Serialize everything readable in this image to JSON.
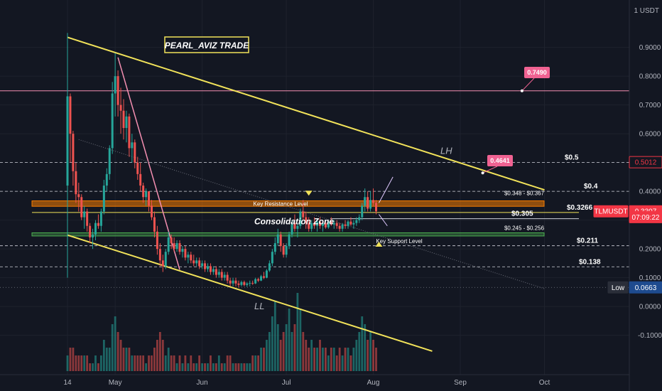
{
  "chart_data": {
    "type": "candlestick",
    "title": "PEARL_AVIZ TRADE",
    "symbol": "TLMUSDT",
    "currency": "USDT",
    "y_axis_unit_label": "1 USDT",
    "ylim": [
      -0.17,
      1.03
    ],
    "y_ticks": [
      {
        "value": 0.9,
        "label": "0.9000"
      },
      {
        "value": 0.8,
        "label": "0.8000"
      },
      {
        "value": 0.7,
        "label": "0.7000"
      },
      {
        "value": 0.6,
        "label": "0.6000"
      },
      {
        "value": 0.5,
        "label": "0.5000"
      },
      {
        "value": 0.4,
        "label": "0.4000"
      },
      {
        "value": 0.3,
        "label": "0.3000"
      },
      {
        "value": 0.2,
        "label": "0.2000"
      },
      {
        "value": 0.1,
        "label": "0.1000"
      },
      {
        "value": 0.0,
        "label": "0.0000"
      },
      {
        "value": -0.1,
        "label": "-0.1000"
      }
    ],
    "x_ticks": [
      {
        "label": "14",
        "day": 0
      },
      {
        "label": "May",
        "day": 17
      },
      {
        "label": "Jun",
        "day": 48
      },
      {
        "label": "Jul",
        "day": 78
      },
      {
        "label": "Aug",
        "day": 109
      },
      {
        "label": "Sep",
        "day": 140
      },
      {
        "label": "Oct",
        "day": 170
      }
    ],
    "price_badges": [
      {
        "text": "0.5012",
        "value": 0.5012,
        "color": "#f23645",
        "text_color": "#f23645",
        "bg": "#131722",
        "outlined": true
      },
      {
        "text": "TLMUSDT",
        "value": 0.3307,
        "color": "#f23645",
        "text_color": "#ffffff",
        "bg": "#f23645",
        "outlined": false
      },
      {
        "text": "0.3307",
        "value": 0.3307,
        "color": "#f23645",
        "text_color": "#ffffff",
        "bg": "#f23645",
        "outlined": false
      },
      {
        "text": "07:09:22",
        "value": 0.3105,
        "color": "#f23645",
        "text_color": "#ffffff",
        "bg": "#f23645",
        "outlined": false
      },
      {
        "text": "Low",
        "value": 0.0663,
        "color": "#2a2e39",
        "text_color": "#ffffff",
        "bg": "#2a2e39",
        "outlined": false
      },
      {
        "text": "0.0663",
        "value": 0.0663,
        "color": "#1e4b8f",
        "text_color": "#ffffff",
        "bg": "#1e4b8f",
        "outlined": false
      }
    ],
    "horizontal_levels": [
      {
        "value": 0.5,
        "label": "$0.5",
        "style": "dashed",
        "color": "#d1d4dc"
      },
      {
        "value": 0.4,
        "label": "$0.4",
        "style": "dashed",
        "color": "#d1d4dc"
      },
      {
        "value": 0.3266,
        "label": "$0.3266",
        "style": "solid",
        "color": "#f2e35a"
      },
      {
        "value": 0.305,
        "label": "$0.305",
        "style": "solid",
        "color": "#d1d4dc"
      },
      {
        "value": 0.211,
        "label": "$0.211",
        "style": "dashed",
        "color": "#d1d4dc"
      },
      {
        "value": 0.138,
        "label": "$0.138",
        "style": "dashed",
        "color": "#d1d4dc"
      },
      {
        "value": 0.749,
        "label": "",
        "style": "solid",
        "color": "#f48fb1"
      },
      {
        "value": 0.0663,
        "label": "",
        "style": "dotted",
        "color": "#6a6d78"
      }
    ],
    "zones": [
      {
        "name": "Key Resistance Level",
        "range_label": "$0.348 - $0.367",
        "low": 0.348,
        "high": 0.367,
        "color": "#f57c00"
      },
      {
        "name": "Key Support Level",
        "range_label": "$0.245 - $0.256",
        "low": 0.245,
        "high": 0.256,
        "color": "#4caf50"
      }
    ],
    "annotations": {
      "consolidation": "Consolidation Zone",
      "lower_high": "LH",
      "lower_low": "LL",
      "target_high": "0.7490",
      "target_mid": "0.4641"
    },
    "trendlines": [
      {
        "name": "upper-descending",
        "from": {
          "day": 0,
          "value": 0.935
        },
        "to": {
          "day": 170,
          "value": 0.405
        },
        "color": "#f2e35a"
      },
      {
        "name": "lower-descending",
        "from": {
          "day": 0,
          "value": 0.248
        },
        "to": {
          "day": 130,
          "value": -0.155
        },
        "color": "#f2e35a"
      },
      {
        "name": "spike-decline",
        "from": {
          "day": 18,
          "value": 0.865
        },
        "to": {
          "day": 40,
          "value": 0.128
        },
        "color": "#f48fb1"
      },
      {
        "name": "dotted-trend",
        "from": {
          "day": 4,
          "value": 0.58
        },
        "to": {
          "day": 170,
          "value": 0.062
        },
        "color": "#6a6d78"
      }
    ],
    "candles": [
      [
        0,
        0.42,
        0.95,
        0.1,
        0.73
      ],
      [
        1,
        0.73,
        0.74,
        0.5,
        0.6
      ],
      [
        2,
        0.6,
        0.61,
        0.42,
        0.47
      ],
      [
        3,
        0.47,
        0.5,
        0.36,
        0.39
      ],
      [
        4,
        0.39,
        0.43,
        0.33,
        0.38
      ],
      [
        5,
        0.38,
        0.39,
        0.3,
        0.31
      ],
      [
        6,
        0.31,
        0.35,
        0.27,
        0.33
      ],
      [
        7,
        0.33,
        0.34,
        0.26,
        0.28
      ],
      [
        8,
        0.28,
        0.29,
        0.22,
        0.24
      ],
      [
        9,
        0.24,
        0.27,
        0.2,
        0.25
      ],
      [
        10,
        0.25,
        0.3,
        0.23,
        0.29
      ],
      [
        11,
        0.29,
        0.32,
        0.27,
        0.28
      ],
      [
        12,
        0.28,
        0.34,
        0.26,
        0.33
      ],
      [
        13,
        0.33,
        0.44,
        0.32,
        0.42
      ],
      [
        14,
        0.42,
        0.48,
        0.4,
        0.46
      ],
      [
        15,
        0.46,
        0.56,
        0.44,
        0.55
      ],
      [
        16,
        0.55,
        0.78,
        0.53,
        0.74
      ],
      [
        17,
        0.74,
        0.88,
        0.66,
        0.8
      ],
      [
        18,
        0.8,
        0.82,
        0.66,
        0.7
      ],
      [
        19,
        0.7,
        0.76,
        0.6,
        0.68
      ],
      [
        20,
        0.68,
        0.72,
        0.58,
        0.62
      ],
      [
        21,
        0.62,
        0.68,
        0.57,
        0.66
      ],
      [
        22,
        0.66,
        0.67,
        0.52,
        0.55
      ],
      [
        23,
        0.55,
        0.6,
        0.5,
        0.57
      ],
      [
        24,
        0.57,
        0.58,
        0.48,
        0.5
      ],
      [
        25,
        0.5,
        0.52,
        0.44,
        0.46
      ],
      [
        26,
        0.46,
        0.5,
        0.4,
        0.42
      ],
      [
        27,
        0.42,
        0.43,
        0.36,
        0.38
      ],
      [
        28,
        0.38,
        0.41,
        0.35,
        0.4
      ],
      [
        29,
        0.4,
        0.4,
        0.33,
        0.35
      ],
      [
        30,
        0.35,
        0.37,
        0.3,
        0.31
      ],
      [
        31,
        0.31,
        0.33,
        0.24,
        0.26
      ],
      [
        32,
        0.26,
        0.28,
        0.18,
        0.2
      ],
      [
        33,
        0.2,
        0.22,
        0.14,
        0.16
      ],
      [
        34,
        0.16,
        0.18,
        0.12,
        0.14
      ],
      [
        35,
        0.14,
        0.2,
        0.13,
        0.19
      ],
      [
        36,
        0.19,
        0.26,
        0.18,
        0.24
      ],
      [
        37,
        0.24,
        0.25,
        0.2,
        0.22
      ],
      [
        38,
        0.22,
        0.24,
        0.19,
        0.2
      ],
      [
        39,
        0.2,
        0.23,
        0.19,
        0.22
      ],
      [
        40,
        0.22,
        0.23,
        0.18,
        0.19
      ],
      [
        41,
        0.19,
        0.21,
        0.17,
        0.2
      ],
      [
        42,
        0.2,
        0.21,
        0.16,
        0.17
      ],
      [
        43,
        0.17,
        0.19,
        0.15,
        0.18
      ],
      [
        44,
        0.18,
        0.19,
        0.15,
        0.16
      ],
      [
        45,
        0.16,
        0.18,
        0.14,
        0.15
      ],
      [
        46,
        0.15,
        0.17,
        0.14,
        0.16
      ],
      [
        47,
        0.16,
        0.17,
        0.13,
        0.14
      ],
      [
        48,
        0.14,
        0.16,
        0.13,
        0.15
      ],
      [
        49,
        0.15,
        0.16,
        0.12,
        0.13
      ],
      [
        50,
        0.13,
        0.15,
        0.12,
        0.14
      ],
      [
        51,
        0.14,
        0.15,
        0.11,
        0.12
      ],
      [
        52,
        0.12,
        0.14,
        0.11,
        0.13
      ],
      [
        53,
        0.13,
        0.14,
        0.1,
        0.11
      ],
      [
        54,
        0.11,
        0.13,
        0.1,
        0.12
      ],
      [
        55,
        0.12,
        0.13,
        0.09,
        0.1
      ],
      [
        56,
        0.1,
        0.12,
        0.09,
        0.11
      ],
      [
        57,
        0.11,
        0.12,
        0.08,
        0.09
      ],
      [
        58,
        0.09,
        0.1,
        0.07,
        0.08
      ],
      [
        59,
        0.08,
        0.1,
        0.07,
        0.09
      ],
      [
        60,
        0.09,
        0.1,
        0.07,
        0.08
      ],
      [
        61,
        0.08,
        0.09,
        0.066,
        0.075
      ],
      [
        62,
        0.075,
        0.09,
        0.07,
        0.085
      ],
      [
        63,
        0.085,
        0.09,
        0.07,
        0.075
      ],
      [
        64,
        0.075,
        0.085,
        0.068,
        0.08
      ],
      [
        65,
        0.08,
        0.09,
        0.07,
        0.082
      ],
      [
        66,
        0.082,
        0.09,
        0.075,
        0.08
      ],
      [
        67,
        0.08,
        0.1,
        0.078,
        0.095
      ],
      [
        68,
        0.095,
        0.1,
        0.085,
        0.09
      ],
      [
        69,
        0.09,
        0.11,
        0.088,
        0.105
      ],
      [
        70,
        0.105,
        0.12,
        0.095,
        0.1
      ],
      [
        71,
        0.1,
        0.13,
        0.098,
        0.125
      ],
      [
        72,
        0.125,
        0.16,
        0.12,
        0.15
      ],
      [
        73,
        0.15,
        0.2,
        0.14,
        0.19
      ],
      [
        74,
        0.19,
        0.24,
        0.18,
        0.22
      ],
      [
        75,
        0.22,
        0.27,
        0.21,
        0.25
      ],
      [
        76,
        0.25,
        0.26,
        0.19,
        0.21
      ],
      [
        77,
        0.21,
        0.22,
        0.17,
        0.18
      ],
      [
        78,
        0.18,
        0.22,
        0.17,
        0.21
      ],
      [
        79,
        0.21,
        0.26,
        0.2,
        0.25
      ],
      [
        80,
        0.25,
        0.3,
        0.24,
        0.29
      ],
      [
        81,
        0.29,
        0.32,
        0.26,
        0.27
      ],
      [
        82,
        0.27,
        0.29,
        0.24,
        0.28
      ],
      [
        83,
        0.28,
        0.34,
        0.27,
        0.33
      ],
      [
        84,
        0.33,
        0.37,
        0.3,
        0.31
      ],
      [
        85,
        0.31,
        0.33,
        0.27,
        0.29
      ],
      [
        86,
        0.29,
        0.31,
        0.26,
        0.27
      ],
      [
        87,
        0.27,
        0.3,
        0.26,
        0.29
      ],
      [
        88,
        0.29,
        0.31,
        0.27,
        0.28
      ],
      [
        89,
        0.28,
        0.3,
        0.26,
        0.295
      ],
      [
        90,
        0.295,
        0.31,
        0.27,
        0.28
      ],
      [
        91,
        0.28,
        0.3,
        0.26,
        0.29
      ],
      [
        92,
        0.29,
        0.3,
        0.27,
        0.275
      ],
      [
        93,
        0.275,
        0.3,
        0.27,
        0.295
      ],
      [
        94,
        0.295,
        0.31,
        0.28,
        0.285
      ],
      [
        95,
        0.285,
        0.3,
        0.27,
        0.29
      ],
      [
        96,
        0.29,
        0.3,
        0.27,
        0.28
      ],
      [
        97,
        0.28,
        0.29,
        0.26,
        0.27
      ],
      [
        98,
        0.27,
        0.29,
        0.26,
        0.285
      ],
      [
        99,
        0.285,
        0.3,
        0.27,
        0.28
      ],
      [
        100,
        0.28,
        0.3,
        0.27,
        0.295
      ],
      [
        101,
        0.295,
        0.31,
        0.28,
        0.285
      ],
      [
        102,
        0.285,
        0.3,
        0.27,
        0.29
      ],
      [
        103,
        0.29,
        0.31,
        0.28,
        0.3
      ],
      [
        104,
        0.3,
        0.32,
        0.29,
        0.31
      ],
      [
        105,
        0.31,
        0.36,
        0.3,
        0.35
      ],
      [
        106,
        0.35,
        0.41,
        0.33,
        0.38
      ],
      [
        107,
        0.38,
        0.4,
        0.33,
        0.34
      ],
      [
        108,
        0.34,
        0.4,
        0.33,
        0.37
      ],
      [
        109,
        0.37,
        0.41,
        0.35,
        0.36
      ],
      [
        110,
        0.36,
        0.37,
        0.32,
        0.3307
      ]
    ],
    "volumes": [
      0.02,
      0.03,
      0.03,
      0.02,
      0.02,
      0.02,
      0.02,
      0.02,
      0.01,
      0.01,
      0.02,
      0.01,
      0.02,
      0.04,
      0.03,
      0.03,
      0.06,
      0.07,
      0.05,
      0.04,
      0.03,
      0.03,
      0.03,
      0.02,
      0.02,
      0.02,
      0.02,
      0.02,
      0.01,
      0.02,
      0.02,
      0.03,
      0.04,
      0.05,
      0.04,
      0.02,
      0.03,
      0.02,
      0.02,
      0.01,
      0.02,
      0.01,
      0.02,
      0.01,
      0.02,
      0.01,
      0.01,
      0.02,
      0.01,
      0.01,
      0.01,
      0.02,
      0.01,
      0.01,
      0.02,
      0.01,
      0.01,
      0.02,
      0.02,
      0.01,
      0.01,
      0.01,
      0.01,
      0.01,
      0.01,
      0.01,
      0.02,
      0.02,
      0.02,
      0.03,
      0.03,
      0.04,
      0.05,
      0.07,
      0.09,
      0.06,
      0.04,
      0.05,
      0.06,
      0.08,
      0.05,
      0.06,
      0.1,
      0.08,
      0.05,
      0.04,
      0.03,
      0.04,
      0.03,
      0.03,
      0.04,
      0.03,
      0.03,
      0.02,
      0.03,
      0.03,
      0.02,
      0.03,
      0.02,
      0.03,
      0.03,
      0.02,
      0.03,
      0.04,
      0.05,
      0.07,
      0.06,
      0.04,
      0.05,
      0.04,
      0.03
    ]
  }
}
